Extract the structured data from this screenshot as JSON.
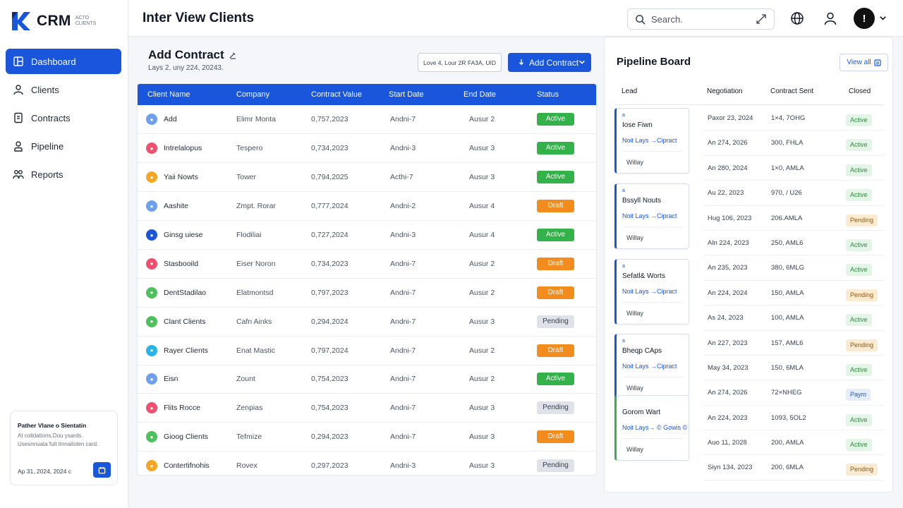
{
  "app": {
    "logo_text": "CRM",
    "logo_sub": "ACTO CLIENTS"
  },
  "sidebar": {
    "items": [
      {
        "label": "Dashboard",
        "icon": "dashboard-icon",
        "active": true
      },
      {
        "label": "Clients",
        "icon": "user-icon"
      },
      {
        "label": "Contracts",
        "icon": "contract-icon"
      },
      {
        "label": "Pipeline",
        "icon": "pipeline-icon"
      },
      {
        "label": "Reports",
        "icon": "reports-icon"
      }
    ],
    "card": {
      "title": "Pather Vlane o Sientatin",
      "line1": "At colldations,Dou ysards.",
      "line2": "Usesnnuata fuit lmnaitolen card.",
      "date": "Ap 31, 2024, 2024 c"
    }
  },
  "header": {
    "title": "Inter View Clients",
    "search_placeholder": "Search.",
    "avatar_glyph": "!"
  },
  "contracts": {
    "title": "Add Contract",
    "subtitle": "Lays 2, uny 224, 20243.",
    "filter_label": "Love 4, Lour 2R FA3A, UID",
    "add_button": "Add Contract",
    "columns": [
      "Client Name",
      "Company",
      "Contract Value",
      "Start Date",
      "End Date",
      "Status"
    ],
    "rows": [
      {
        "name": "Add",
        "company": "Elimr Monta",
        "value": "0,757,2023",
        "start": "Andni-7",
        "end": "Ausur 2",
        "status": "Active",
        "icon_color": "#6ea0f0"
      },
      {
        "name": "Intrelalopus",
        "company": "Tespero",
        "value": "0,734,2023",
        "start": "Andni-3",
        "end": "Ausur 3",
        "status": "Active",
        "icon_color": "#f0506e"
      },
      {
        "name": "Yaii Nowts",
        "company": "Tower",
        "value": "0,794,2025",
        "start": "Acthi-7",
        "end": "Ausur 3",
        "status": "Active",
        "icon_color": "#f5a623"
      },
      {
        "name": "Aashite",
        "company": "Zmpt. Rorar",
        "value": "0,777,2024",
        "start": "Andni-2",
        "end": "Ausur 4",
        "status": "Draft",
        "icon_color": "#6ea0f0"
      },
      {
        "name": "Ginsg uiese",
        "company": "Flodiliai",
        "value": "0,727,2024",
        "start": "Andni-3",
        "end": "Ausur 4",
        "status": "Active",
        "icon_color": "#1a56db"
      },
      {
        "name": "Stasbooild",
        "company": "Eiser Noron",
        "value": "0,734,2023",
        "start": "Andni-7",
        "end": "Ausur 2",
        "status": "Draft",
        "icon_color": "#f0506e"
      },
      {
        "name": "DentStadilao",
        "company": "Elatmontsd",
        "value": "0,797,2023",
        "start": "Andni-7",
        "end": "Ausur 2",
        "status": "Draft",
        "icon_color": "#4cc15c"
      },
      {
        "name": "Clant Clients",
        "company": "Cafn Ainks",
        "value": "0,294,2024",
        "start": "Andni-7",
        "end": "Ausur 3",
        "status": "Pending",
        "icon_color": "#4cc15c"
      },
      {
        "name": "Rayer Clients",
        "company": "Enat Mastic",
        "value": "0,797,2024",
        "start": "Andni-7",
        "end": "Ausur 2",
        "status": "Draft",
        "icon_color": "#28b4e8"
      },
      {
        "name": "Eisn",
        "company": "Zount",
        "value": "0,754,2023",
        "start": "Andni-7",
        "end": "Ausur 2",
        "status": "Active",
        "icon_color": "#6ea0f0"
      },
      {
        "name": "Flits Rocce",
        "company": "Zenpias",
        "value": "0,754,2023",
        "start": "Andni-7",
        "end": "Ausur 3",
        "status": "Pending",
        "icon_color": "#f0506e"
      },
      {
        "name": "Gioog Clients",
        "company": "Tefmize",
        "value": "0,294,2023",
        "start": "Andni-7",
        "end": "Ausur 3",
        "status": "Draft",
        "icon_color": "#4cc15c"
      },
      {
        "name": "Contertifnohis",
        "company": "Rovex",
        "value": "0,297,2023",
        "start": "Andni-3",
        "end": "Ausur 3",
        "status": "Pending",
        "icon_color": "#f5a623"
      }
    ]
  },
  "pipeline": {
    "title": "Pipeline Board",
    "view_button": "View all",
    "columns": [
      "Lead",
      "Negotiation",
      "Contract Sent",
      "Closed"
    ],
    "cards": [
      {
        "caption": "a",
        "name": "Iose Fiwn",
        "link": "Noit Lays →Cipract",
        "owner": "Willay"
      },
      {
        "caption": "a",
        "name": "Bssyll Nouts",
        "link": "Noit Lays →Cipract",
        "owner": "Willay"
      },
      {
        "caption": "a",
        "name": "Sefatl& Worts",
        "link": "Noit Lays →Cipract",
        "owner": "Willay"
      },
      {
        "caption": "a",
        "name": "Bheqp CAps",
        "link": "Noit Lays →Cipract",
        "owner": "Willay"
      },
      {
        "caption": "",
        "name": "Gorom Wart",
        "link": "Noit Lays→ © Gowis ©",
        "owner": "Willay"
      }
    ],
    "rows": [
      {
        "neg": "Paxor 23, 2024",
        "sent": "1×4, 7OHG",
        "closed": "Active"
      },
      {
        "neg": "An 274, 2026",
        "sent": "300, FHLA",
        "closed": "Active"
      },
      {
        "neg": "An 280, 2024",
        "sent": "1×0, AMLA",
        "closed": "Active"
      },
      {
        "neg": "Au 22, 2023",
        "sent": "970, / U26",
        "closed": "Active"
      },
      {
        "neg": "Hug 106, 2023",
        "sent": "206.AMLA",
        "closed": "Pending"
      },
      {
        "neg": "Aln 224, 2023",
        "sent": "250, AML6",
        "closed": "Active"
      },
      {
        "neg": "An 235, 2023",
        "sent": "380, 6MLG",
        "closed": "Active"
      },
      {
        "neg": "An 224, 2024",
        "sent": "150, AMLA",
        "closed": "Pending"
      },
      {
        "neg": "As 24, 2023",
        "sent": "100, AMLA",
        "closed": "Active"
      },
      {
        "neg": "An 227, 2023",
        "sent": "157, AML6",
        "closed": "Pending"
      },
      {
        "neg": "May 34, 2023",
        "sent": "150, 6MLA",
        "closed": "Active"
      },
      {
        "neg": "An 274, 2026",
        "sent": "72×NHEG",
        "closed": "Paym"
      },
      {
        "neg": "An 224, 2023",
        "sent": "1093, 5OL2",
        "closed": "Active"
      },
      {
        "neg": "Auo 11, 2028",
        "sent": "200, AMLA",
        "closed": "Active"
      },
      {
        "neg": "Siyn 134, 2023",
        "sent": "200, 6MLA",
        "closed": "Pending"
      }
    ]
  },
  "colors": {
    "primary": "#1a56db",
    "active": "#34b24a",
    "draft": "#f28c1d",
    "pending": "#dfe2e8"
  }
}
